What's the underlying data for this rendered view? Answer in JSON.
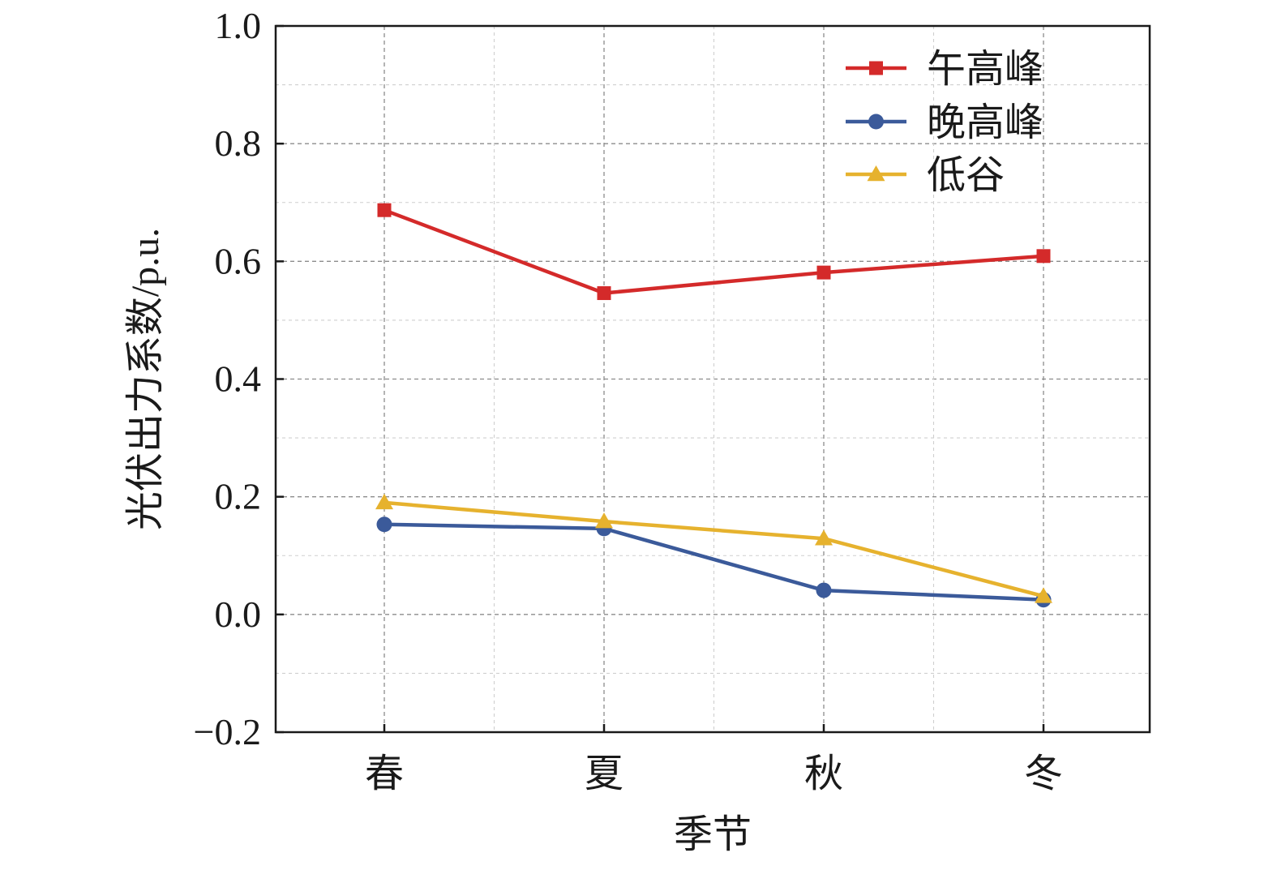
{
  "chart_data": {
    "type": "line",
    "categories": [
      "春",
      "夏",
      "秋",
      "冬"
    ],
    "xlabel": "季节",
    "ylabel": "光伏出力系数/p.u.",
    "ylim": [
      -0.2,
      1.0
    ],
    "yticks": [
      -0.2,
      0.0,
      0.2,
      0.4,
      0.6,
      0.8,
      1.0
    ],
    "ytick_labels": [
      "−0.2",
      "0.0",
      "0.2",
      "0.4",
      "0.6",
      "0.8",
      "1.0"
    ],
    "grid": true,
    "legend_position": "top-right",
    "series": [
      {
        "name": "午高峰",
        "values": [
          0.687,
          0.546,
          0.581,
          0.609
        ],
        "color": "#d42a2a",
        "marker": "square"
      },
      {
        "name": "晚高峰",
        "values": [
          0.153,
          0.146,
          0.041,
          0.025
        ],
        "color": "#3b5a9a",
        "marker": "circle"
      },
      {
        "name": "低谷",
        "values": [
          0.19,
          0.158,
          0.129,
          0.031
        ],
        "color": "#e6b22e",
        "marker": "triangle"
      }
    ]
  }
}
